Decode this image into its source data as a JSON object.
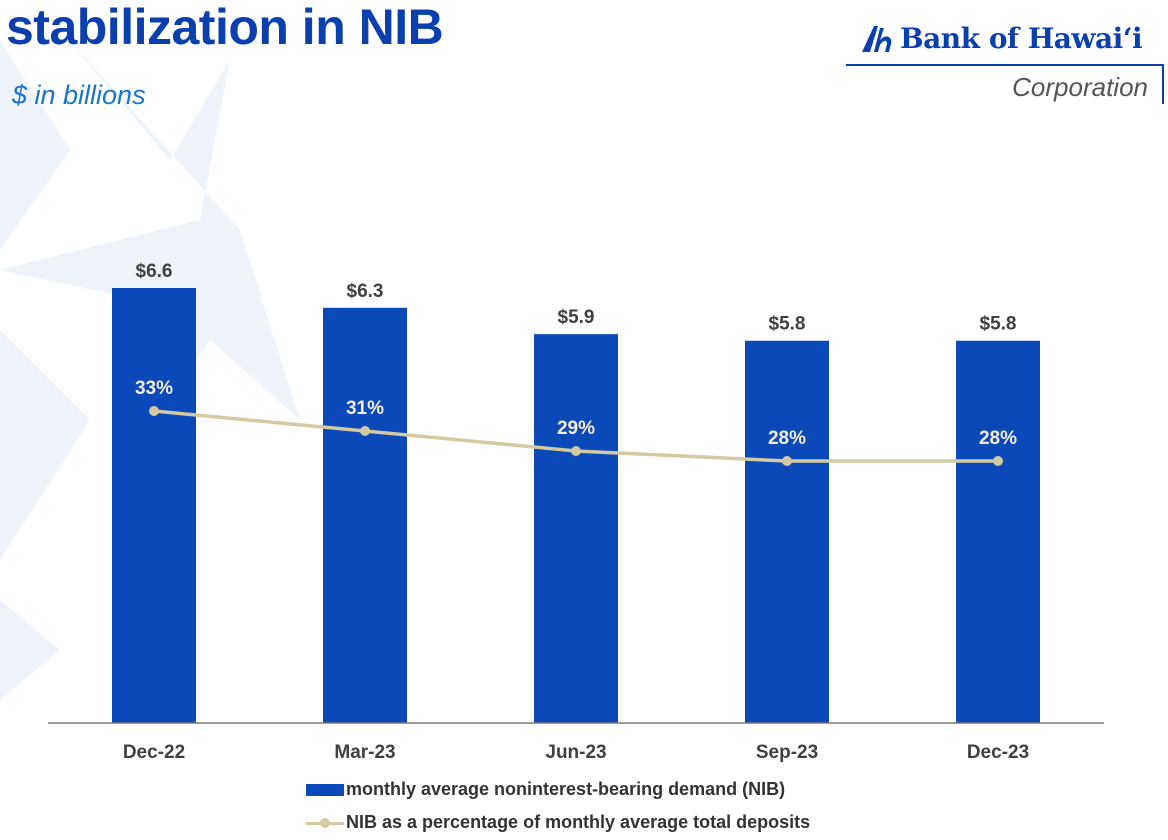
{
  "header": {
    "title": "stabilization in NIB",
    "subtitle": "$ in billions"
  },
  "logo": {
    "name": "Bank of Hawaiʻi",
    "corporation": "Corporation"
  },
  "chart_data": {
    "type": "bar",
    "categories": [
      "Dec-22",
      "Mar-23",
      "Jun-23",
      "Sep-23",
      "Dec-23"
    ],
    "series": [
      {
        "name": "monthly average noninterest-bearing demand (NIB)",
        "type": "bar",
        "values": [
          6.6,
          6.3,
          5.9,
          5.8,
          5.8
        ],
        "labels": [
          "$6.6",
          "$6.3",
          "$5.9",
          "$5.8",
          "$5.8"
        ],
        "color": "#0a49b7"
      },
      {
        "name": "NIB as a percentage of monthly average total deposits",
        "type": "line",
        "values": [
          33,
          31,
          29,
          28,
          28
        ],
        "labels": [
          "33%",
          "31%",
          "29%",
          "28%",
          "28%"
        ],
        "color": "#d3c9a3"
      }
    ],
    "legend_position": "bottom",
    "grid": false
  }
}
